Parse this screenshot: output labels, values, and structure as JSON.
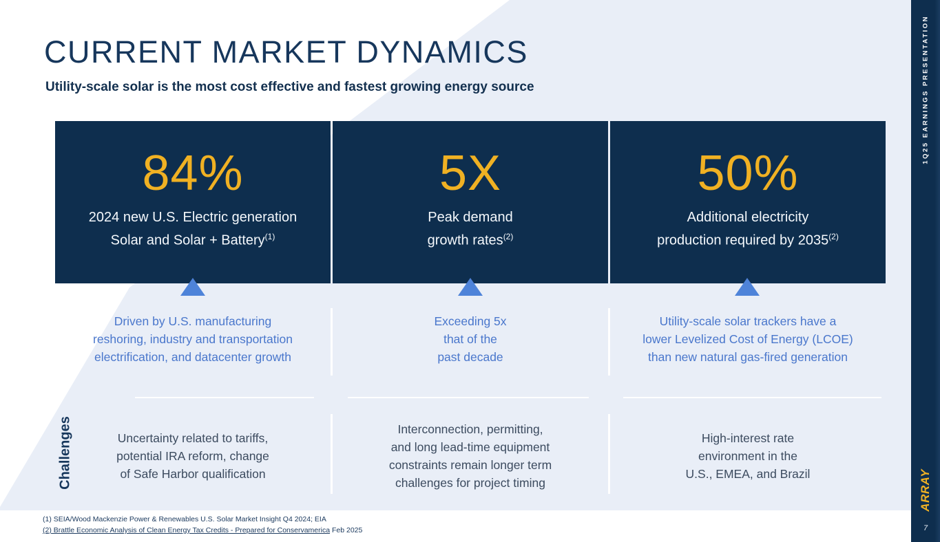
{
  "slide": {
    "title": "CURRENT MARKET DYNAMICS",
    "subtitle": "Utility-scale solar is the most cost effective and fastest growing energy source",
    "page_number": "7"
  },
  "sidebar": {
    "label": "1Q25 EARNINGS PRESENTATION",
    "brand": "ARRAY"
  },
  "colors": {
    "navy": "#0E2E4E",
    "title_navy": "#17375C",
    "brand_yellow": "#F0B123",
    "accent_blue_text": "#4A77CC",
    "triangle_blue": "#4E83D9",
    "light_blue_bg": "#E9EEF7",
    "challenge_text": "#3C4B5F"
  },
  "challenges_label": "Challenges",
  "columns": [
    {
      "stat": "84%",
      "caption": [
        "2024 new U.S. Electric generation",
        "Solar and Solar + Battery"
      ],
      "ref": "(1)",
      "driver": [
        "Driven by U.S. manufacturing",
        "reshoring, industry and transportation",
        "electrification, and datacenter growth"
      ],
      "challenge": [
        "Uncertainty related to tariffs,",
        "potential IRA reform, change",
        "of Safe Harbor qualification"
      ]
    },
    {
      "stat": "5X",
      "caption": [
        "Peak demand",
        "growth rates"
      ],
      "ref": "(2)",
      "driver": [
        "Exceeding 5x",
        "that of the",
        "past decade"
      ],
      "challenge": [
        "Interconnection, permitting,",
        "and long lead-time equipment",
        "constraints remain longer term",
        "challenges for project timing"
      ]
    },
    {
      "stat": "50%",
      "caption": [
        "Additional electricity",
        "production required by 2035"
      ],
      "ref": "(2)",
      "driver": [
        "Utility-scale solar trackers have a",
        "lower Levelized Cost of Energy (LCOE)",
        "than new natural gas-fired generation"
      ],
      "challenge": [
        "High-interest rate",
        "environment in the",
        "U.S., EMEA, and Brazil"
      ]
    }
  ],
  "footnotes": {
    "line1": "(1) SEIA/Wood Mackenzie Power & Renewables U.S. Solar Market Insight Q4 2024; EIA",
    "line2_link": "(2) Brattle Economic Analysis of Clean Energy Tax Credits - Prepared for Conservamerica",
    "line2_suffix": " Feb 2025"
  }
}
